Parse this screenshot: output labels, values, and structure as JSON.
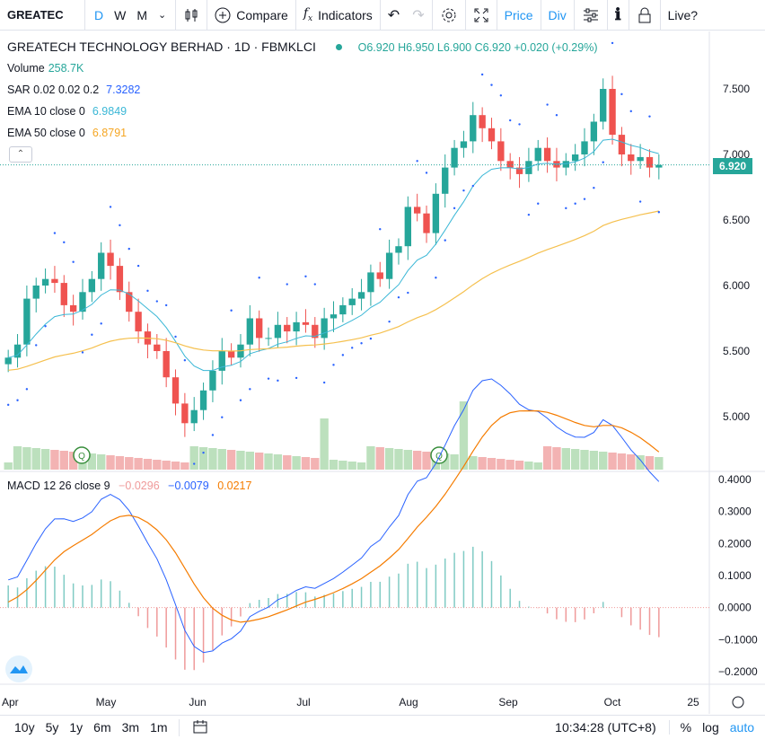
{
  "toolbar": {
    "symbol": "GREATEC",
    "intervals": [
      "D",
      "W",
      "M"
    ],
    "compare_label": "Compare",
    "indicators_label": "Indicators",
    "price_label": "Price",
    "div_label": "Div",
    "live_label": "Live?"
  },
  "legend": {
    "title": "GREATECH TECHNOLOGY BERHAD · 1D · FBMKLCI",
    "ohlc": "O6.920 H6.950 L6.900 C6.920 +0.020 (+0.29%)",
    "volume_label": "Volume",
    "volume_value": "258.7K",
    "sar_label": "SAR 0.02 0.02 0.2",
    "sar_value": "7.3282",
    "ema10_label": "EMA 10 close 0",
    "ema10_value": "6.9849",
    "ema50_label": "EMA 50 close 0",
    "ema50_value": "6.8791",
    "macd_label": "MACD 12 26 close 9",
    "macd_hist": "−0.0296",
    "macd_line": "−0.0079",
    "macd_signal": "0.0217"
  },
  "last_price_tag": "6.920",
  "colors": {
    "up": "#26a69a",
    "down": "#ef5350",
    "ema10": "#3ab7d6",
    "ema50": "#f5c04e",
    "sar": "#2962ff",
    "macd_line": "#2962ff",
    "macd_signal": "#f57c00",
    "accent": "#2196f3"
  },
  "price_axis": [
    "7.500",
    "7.000",
    "6.500",
    "6.000",
    "5.500",
    "5.000"
  ],
  "macd_axis": [
    "0.4000",
    "0.3000",
    "0.2000",
    "0.1000",
    "0.0000",
    "−0.1000",
    "−0.2000"
  ],
  "time_axis": [
    "Apr",
    "May",
    "Jun",
    "Jul",
    "Aug",
    "Sep",
    "Oct",
    "25"
  ],
  "bottom": {
    "ranges": [
      "10y",
      "5y",
      "1y",
      "6m",
      "3m",
      "1m"
    ],
    "clock": "10:34:28 (UTC+8)",
    "percent": "%",
    "log": "log",
    "auto": "auto"
  },
  "event_marker": "Q",
  "chart_data": {
    "type": "line",
    "candles_close": [
      5.45,
      5.55,
      5.9,
      6.0,
      6.05,
      6.02,
      5.85,
      5.8,
      5.95,
      6.05,
      6.25,
      6.15,
      5.95,
      5.8,
      5.65,
      5.55,
      5.5,
      5.3,
      5.1,
      4.95,
      5.05,
      5.2,
      5.35,
      5.5,
      5.45,
      5.55,
      5.75,
      5.6,
      5.6,
      5.7,
      5.65,
      5.72,
      5.7,
      5.6,
      5.75,
      5.78,
      5.85,
      5.9,
      5.95,
      6.1,
      6.05,
      6.25,
      6.3,
      6.6,
      6.55,
      6.4,
      6.7,
      6.9,
      7.05,
      7.1,
      7.3,
      7.2,
      7.1,
      6.95,
      6.9,
      6.85,
      6.95,
      7.05,
      6.95,
      6.9,
      6.95,
      7.0,
      7.1,
      7.25,
      7.5,
      7.15,
      7.0,
      6.95,
      6.98,
      6.9,
      6.92
    ],
    "ema10_last": 6.9849,
    "ema50_last": 6.8791,
    "sar_last": 7.3282,
    "last_close": 6.92,
    "ylim": [
      4.7,
      7.7
    ],
    "macd_ylim": [
      -0.22,
      0.42
    ]
  }
}
